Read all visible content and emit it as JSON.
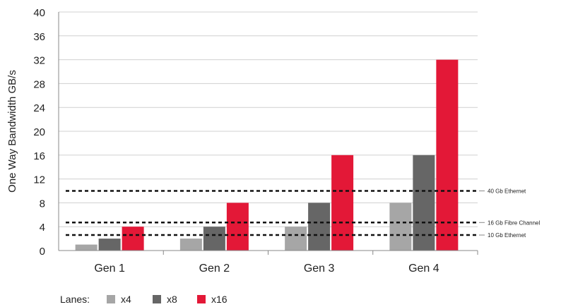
{
  "chart_data": {
    "type": "bar",
    "categories": [
      "Gen 1",
      "Gen 2",
      "Gen 3",
      "Gen 4"
    ],
    "series": [
      {
        "name": "x4",
        "color": "#a6a6a6",
        "values": [
          1,
          2,
          4,
          8
        ]
      },
      {
        "name": "x8",
        "color": "#666666",
        "values": [
          2,
          4,
          8,
          16
        ]
      },
      {
        "name": "x16",
        "color": "#e31837",
        "values": [
          4,
          8,
          16,
          32
        ]
      }
    ],
    "ylabel": "One Way Bandwidth GB/s",
    "ylim": [
      0,
      40
    ],
    "yticks": [
      0,
      4,
      8,
      12,
      16,
      20,
      24,
      28,
      32,
      36,
      40
    ],
    "grid": true,
    "legend_title": "Lanes:",
    "legend_placement": "bottom-left",
    "reference_lines": [
      {
        "label": "40 Gb Ethernet",
        "value": 10
      },
      {
        "label": "16 Gb Fibre Channel",
        "value": 4.7
      },
      {
        "label": "10 Gb Ethernet",
        "value": 2.6
      }
    ]
  }
}
